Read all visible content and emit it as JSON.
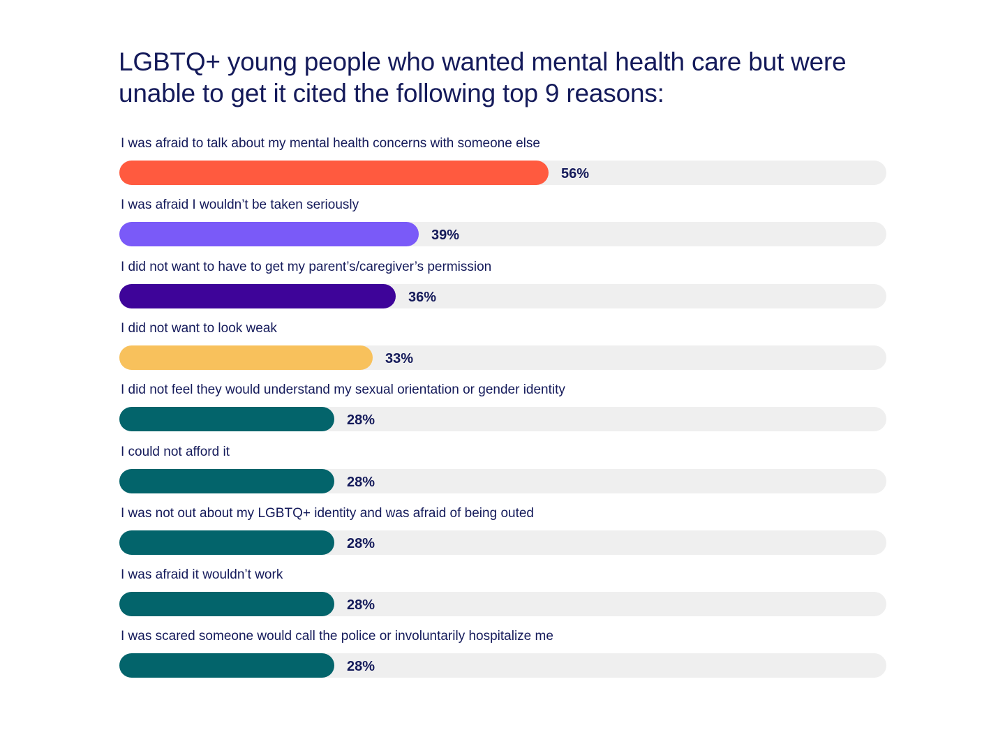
{
  "title": "LGBTQ+ young people who wanted mental health care but were unable to get it cited the following top 9 reasons:",
  "chart_data": {
    "type": "bar",
    "orientation": "horizontal",
    "title": "LGBTQ+ young people who wanted mental health care but were unable to get it cited the following top 9 reasons:",
    "xlim": [
      0,
      100
    ],
    "grid": false,
    "legend": "none",
    "categories": [
      "I was afraid to talk about my mental health concerns with someone else",
      "I was afraid I wouldn’t be taken seriously",
      "I did not want to have to get my parent’s/caregiver’s permission",
      "I did not want to look weak",
      "I did not feel they would understand my sexual orientation or gender identity",
      "I could not afford it",
      "I was not out about my LGBTQ+ identity and was afraid of being outed",
      "I was afraid it wouldn’t work",
      "I was scared someone would call the police or involuntarily hospitalize me"
    ],
    "values": [
      56,
      39,
      36,
      33,
      28,
      28,
      28,
      28,
      28
    ],
    "value_labels": [
      "56%",
      "39%",
      "36%",
      "33%",
      "28%",
      "28%",
      "28%",
      "28%",
      "28%"
    ],
    "colors": [
      "#ff5a3f",
      "#7a5af8",
      "#3e0499",
      "#f8c15c",
      "#03646b",
      "#03646b",
      "#03646b",
      "#03646b",
      "#03646b"
    ],
    "track_color": "#efefef"
  }
}
